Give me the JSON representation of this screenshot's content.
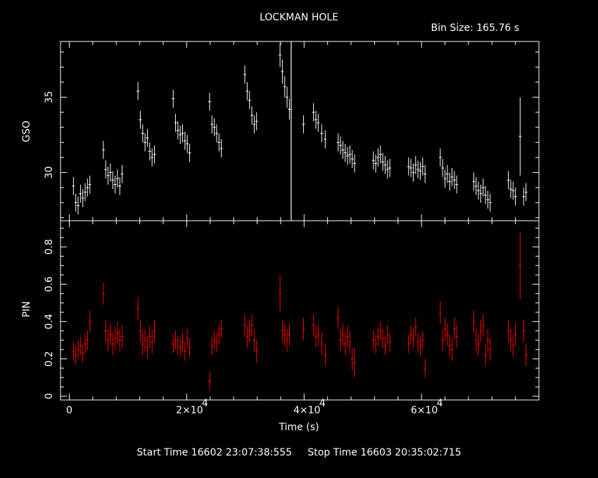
{
  "header": {
    "title": "LOCKMAN HOLE",
    "bin_size": "Bin Size: 165.76 s"
  },
  "footer": {
    "start_label": "Start Time",
    "start_value": "16602 23:07:38:555",
    "stop_label": "Stop Time",
    "stop_value": "16603 20:35:02:715"
  },
  "chart_data": [
    {
      "type": "scatter",
      "panel": "GSO",
      "ylabel": "GSO",
      "xlabel": "",
      "xlim": [
        -1500,
        80000
      ],
      "ylim": [
        26.8,
        38.7
      ],
      "yticks": [
        30,
        35
      ],
      "grid": false,
      "color": "#ffffff",
      "vertical_line_x": 37800,
      "series": [
        {
          "x": [
            700,
            1100,
            1500,
            1900,
            2300,
            2700,
            3100,
            3500
          ],
          "y": [
            29.1,
            28.0,
            27.8,
            28.6,
            28.3,
            28.7,
            29.0,
            29.2
          ],
          "err": [
            0.6,
            0.6,
            0.6,
            0.6,
            0.6,
            0.6,
            0.6,
            0.6
          ]
        },
        {
          "x": [
            5800,
            6200,
            6600,
            7000,
            7400,
            7800,
            8200,
            8600,
            9000
          ],
          "y": [
            31.5,
            30.2,
            29.8,
            30.0,
            29.5,
            29.2,
            29.6,
            29.1,
            29.9
          ],
          "err": [
            0.6,
            0.6,
            0.6,
            0.6,
            0.6,
            0.6,
            0.6,
            0.6,
            0.6
          ]
        },
        {
          "x": [
            11700,
            12100,
            12500,
            12900,
            13300,
            13700,
            14100,
            14500
          ],
          "y": [
            35.4,
            33.5,
            32.6,
            32.0,
            32.3,
            31.4,
            31.0,
            31.2
          ],
          "err": [
            0.6,
            0.6,
            0.6,
            0.6,
            0.6,
            0.6,
            0.6,
            0.6
          ]
        },
        {
          "x": [
            17700,
            18100,
            18500,
            18900,
            19300,
            19700,
            20100,
            20500
          ],
          "y": [
            34.9,
            33.3,
            32.8,
            32.5,
            32.6,
            32.1,
            31.9,
            31.3
          ],
          "err": [
            0.6,
            0.6,
            0.6,
            0.6,
            0.6,
            0.6,
            0.6,
            0.6
          ]
        },
        {
          "x": [
            23900,
            24300,
            24700,
            25100,
            25500,
            25900
          ],
          "y": [
            34.7,
            33.2,
            33.0,
            32.6,
            32.0,
            31.6
          ],
          "err": [
            0.6,
            0.6,
            0.6,
            0.6,
            0.6,
            0.6
          ]
        },
        {
          "x": [
            29900,
            30300,
            30700,
            31100,
            31500,
            31900
          ],
          "y": [
            36.5,
            35.4,
            34.8,
            33.8,
            33.2,
            33.4
          ],
          "err": [
            0.6,
            0.6,
            0.6,
            0.6,
            0.6,
            0.6
          ]
        },
        {
          "x": [
            35900,
            36300,
            36700,
            37100,
            37500
          ],
          "y": [
            37.8,
            36.7,
            35.7,
            35.0,
            34.2
          ],
          "err": [
            0.8,
            0.8,
            0.7,
            0.7,
            0.7
          ]
        },
        {
          "x": [
            39900,
            41600,
            42000,
            42400,
            43000,
            43600
          ],
          "y": [
            33.2,
            34.0,
            33.5,
            33.3,
            32.6,
            32.2
          ],
          "err": [
            0.6,
            0.6,
            0.6,
            0.6,
            0.6,
            0.6
          ]
        },
        {
          "x": [
            45800,
            46200,
            46600,
            47000,
            47400,
            47800,
            48200,
            48600
          ],
          "y": [
            32.0,
            31.8,
            31.5,
            31.3,
            31.1,
            31.2,
            30.9,
            30.6
          ],
          "err": [
            0.6,
            0.6,
            0.6,
            0.6,
            0.6,
            0.6,
            0.6,
            0.6
          ]
        },
        {
          "x": [
            51800,
            52200,
            52600,
            53000,
            53400,
            53800,
            54200,
            54600
          ],
          "y": [
            30.8,
            30.6,
            31.0,
            31.2,
            30.7,
            30.5,
            30.2,
            30.3
          ],
          "err": [
            0.6,
            0.6,
            0.6,
            0.6,
            0.6,
            0.6,
            0.6,
            0.6
          ]
        },
        {
          "x": [
            57800,
            58200,
            58600,
            59000,
            59400,
            59800,
            60200,
            60600
          ],
          "y": [
            30.4,
            30.3,
            30.0,
            30.5,
            30.2,
            30.1,
            30.4,
            29.9
          ],
          "err": [
            0.6,
            0.6,
            0.6,
            0.6,
            0.6,
            0.6,
            0.6,
            0.6
          ]
        },
        {
          "x": [
            63200,
            63600,
            64000,
            64400,
            64800,
            65200,
            65600,
            66000
          ],
          "y": [
            31.0,
            30.3,
            29.6,
            29.9,
            29.4,
            29.7,
            29.5,
            29.2
          ],
          "err": [
            0.6,
            0.6,
            0.6,
            0.6,
            0.6,
            0.6,
            0.6,
            0.6
          ]
        },
        {
          "x": [
            68900,
            69300,
            69700,
            70100,
            70500,
            70900,
            71300,
            71700
          ],
          "y": [
            29.4,
            29.1,
            28.8,
            28.6,
            29.0,
            28.5,
            28.2,
            28.0
          ],
          "err": [
            0.6,
            0.6,
            0.6,
            0.6,
            0.6,
            0.6,
            0.6,
            0.6
          ]
        },
        {
          "x": [
            74800,
            75200,
            75600,
            76000,
            76800,
            77400,
            77800
          ],
          "y": [
            29.5,
            28.9,
            28.8,
            28.4,
            32.4,
            28.4,
            28.7
          ],
          "err": [
            0.6,
            0.6,
            0.6,
            0.6,
            2.6,
            0.6,
            0.6
          ]
        }
      ]
    },
    {
      "type": "scatter",
      "panel": "PIN",
      "ylabel": "PIN",
      "xlabel": "Time (s)",
      "xlim": [
        -1500,
        80000
      ],
      "ylim": [
        -0.02,
        0.94
      ],
      "yticks": [
        0,
        0.2,
        0.4,
        0.6,
        0.8
      ],
      "ytick_labels": [
        "0",
        "0.2",
        "0.4",
        "0.6",
        "0.8"
      ],
      "xticks": [
        0,
        20000,
        40000,
        60000
      ],
      "xtick_labels": [
        "0",
        "2×10",
        "4×10",
        "6×10"
      ],
      "xtick_exponent": "4",
      "grid": false,
      "color": "#ff0000",
      "series": [
        {
          "x": [
            700,
            1100,
            1500,
            1900,
            2300,
            2700,
            3100,
            3500
          ],
          "y": [
            0.24,
            0.22,
            0.25,
            0.27,
            0.23,
            0.28,
            0.3,
            0.4
          ],
          "err": [
            0.05,
            0.05,
            0.05,
            0.05,
            0.05,
            0.05,
            0.05,
            0.06
          ]
        },
        {
          "x": [
            5800,
            6200,
            6600,
            7000,
            7400,
            7800,
            8200,
            8600,
            9000
          ],
          "y": [
            0.55,
            0.35,
            0.3,
            0.33,
            0.28,
            0.31,
            0.34,
            0.3,
            0.32
          ],
          "err": [
            0.06,
            0.06,
            0.06,
            0.06,
            0.06,
            0.06,
            0.06,
            0.06,
            0.06
          ]
        },
        {
          "x": [
            11700,
            12100,
            12500,
            12900,
            13300,
            13700,
            14100,
            14500
          ],
          "y": [
            0.47,
            0.35,
            0.28,
            0.3,
            0.26,
            0.32,
            0.29,
            0.35
          ],
          "err": [
            0.06,
            0.06,
            0.06,
            0.06,
            0.06,
            0.06,
            0.06,
            0.06
          ]
        },
        {
          "x": [
            17700,
            18100,
            18500,
            18900,
            19300,
            19700,
            20100,
            20500
          ],
          "y": [
            0.28,
            0.3,
            0.27,
            0.26,
            0.29,
            0.24,
            0.31,
            0.26
          ],
          "err": [
            0.05,
            0.05,
            0.05,
            0.05,
            0.05,
            0.05,
            0.05,
            0.05
          ]
        },
        {
          "x": [
            23900,
            24300,
            24700,
            25100,
            25500,
            25900
          ],
          "y": [
            0.08,
            0.27,
            0.3,
            0.29,
            0.33,
            0.36
          ],
          "err": [
            0.05,
            0.05,
            0.05,
            0.05,
            0.05,
            0.05
          ]
        },
        {
          "x": [
            29900,
            30300,
            30700,
            31100,
            31500,
            31900
          ],
          "y": [
            0.38,
            0.32,
            0.35,
            0.38,
            0.3,
            0.24
          ],
          "err": [
            0.06,
            0.06,
            0.06,
            0.06,
            0.06,
            0.06
          ]
        },
        {
          "x": [
            35900,
            36300,
            36700,
            37100,
            37500
          ],
          "y": [
            0.55,
            0.35,
            0.33,
            0.3,
            0.33
          ],
          "err": [
            0.1,
            0.06,
            0.06,
            0.06,
            0.06
          ]
        },
        {
          "x": [
            39900,
            41600,
            42000,
            42400,
            43000,
            43600
          ],
          "y": [
            0.36,
            0.38,
            0.32,
            0.33,
            0.28,
            0.22
          ],
          "err": [
            0.06,
            0.06,
            0.06,
            0.06,
            0.06,
            0.06
          ]
        },
        {
          "x": [
            45800,
            46200,
            46600,
            47000,
            47400,
            47800,
            48200,
            48600
          ],
          "y": [
            0.42,
            0.3,
            0.33,
            0.28,
            0.32,
            0.29,
            0.2,
            0.18
          ],
          "err": [
            0.06,
            0.06,
            0.06,
            0.06,
            0.06,
            0.06,
            0.06,
            0.08
          ]
        },
        {
          "x": [
            51800,
            52200,
            52600,
            53000,
            53400,
            53800,
            54200,
            54600
          ],
          "y": [
            0.3,
            0.28,
            0.32,
            0.35,
            0.31,
            0.27,
            0.33,
            0.29
          ],
          "err": [
            0.05,
            0.05,
            0.05,
            0.05,
            0.05,
            0.05,
            0.05,
            0.05
          ]
        },
        {
          "x": [
            57800,
            58200,
            58600,
            59000,
            59400,
            59800,
            60200,
            60600
          ],
          "y": [
            0.28,
            0.33,
            0.31,
            0.37,
            0.29,
            0.27,
            0.3,
            0.15
          ],
          "err": [
            0.05,
            0.05,
            0.05,
            0.05,
            0.05,
            0.05,
            0.05,
            0.05
          ]
        },
        {
          "x": [
            63200,
            63600,
            64000,
            64400,
            64800,
            65200,
            65600,
            66000
          ],
          "y": [
            0.45,
            0.3,
            0.36,
            0.33,
            0.27,
            0.25,
            0.36,
            0.32
          ],
          "err": [
            0.06,
            0.06,
            0.06,
            0.06,
            0.06,
            0.06,
            0.06,
            0.06
          ]
        },
        {
          "x": [
            68900,
            69300,
            69700,
            70100,
            70500,
            70900,
            71300,
            71700
          ],
          "y": [
            0.4,
            0.3,
            0.28,
            0.35,
            0.38,
            0.22,
            0.3,
            0.25
          ],
          "err": [
            0.06,
            0.06,
            0.06,
            0.06,
            0.06,
            0.06,
            0.06,
            0.06
          ]
        },
        {
          "x": [
            74800,
            75200,
            75600,
            76000,
            76800,
            77400,
            77800
          ],
          "y": [
            0.35,
            0.3,
            0.27,
            0.33,
            0.7,
            0.35,
            0.22
          ],
          "err": [
            0.06,
            0.06,
            0.06,
            0.06,
            0.18,
            0.06,
            0.06
          ]
        }
      ]
    }
  ]
}
